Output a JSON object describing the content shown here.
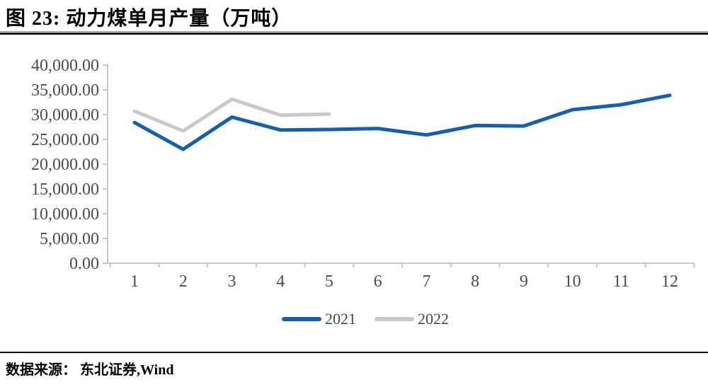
{
  "figure": {
    "title": "图 23: 动力煤单月产量（万吨）",
    "source": "数据来源： 东北证券,Wind"
  },
  "legend": [
    {
      "label": "2021",
      "color": "#1560AE"
    },
    {
      "label": "2022",
      "color": "#C9C9C9"
    }
  ],
  "colors": {
    "axis": "#C1C1C1",
    "tick_text": "#4A4A52"
  },
  "chart_data": {
    "type": "line",
    "title": "动力煤单月产量（万吨）",
    "x": [
      1,
      2,
      3,
      4,
      5,
      6,
      7,
      8,
      9,
      10,
      11,
      12
    ],
    "x_tick_labels": [
      "1",
      "2",
      "3",
      "4",
      "5",
      "6",
      "7",
      "8",
      "9",
      "10",
      "11",
      "12"
    ],
    "series": [
      {
        "name": "2021",
        "color": "#1560AE",
        "values": [
          28400,
          23000,
          29500,
          26900,
          27000,
          27200,
          25900,
          27800,
          27700,
          31000,
          32000,
          33900
        ]
      },
      {
        "name": "2022",
        "color": "#C9C9C9",
        "values": [
          30700,
          26700,
          33100,
          29900,
          30100
        ]
      }
    ],
    "ylim": [
      0,
      40000
    ],
    "ytick_step": 5000,
    "ytick_labels": [
      "0.00",
      "5,000.00",
      "10,000.00",
      "15,000.00",
      "20,000.00",
      "25,000.00",
      "30,000.00",
      "35,000.00",
      "40,000.00"
    ],
    "grid": false,
    "legend_position": "bottom"
  }
}
